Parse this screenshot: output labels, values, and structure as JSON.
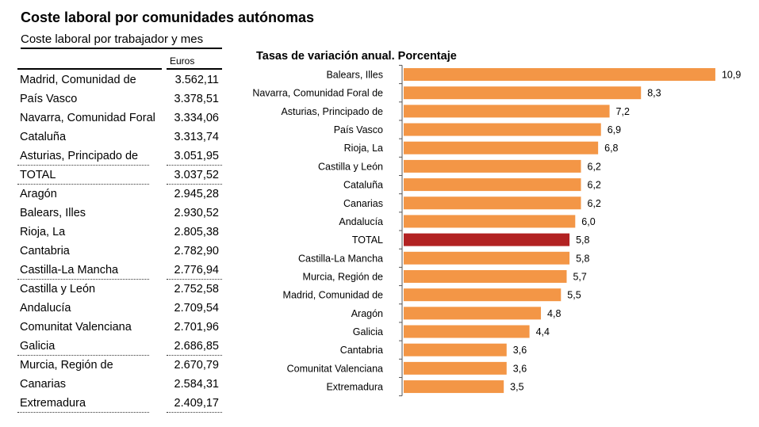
{
  "title": "Coste laboral por comunidades autónomas",
  "table": {
    "title": "Coste laboral por trabajador y mes",
    "unit": "Euros",
    "rows": [
      {
        "name": "Madrid, Comunidad de",
        "value": "3.562,11"
      },
      {
        "name": "País Vasco",
        "value": "3.378,51"
      },
      {
        "name": "Navarra, Comunidad Foral",
        "value": "3.334,06"
      },
      {
        "name": "Cataluña",
        "value": "3.313,74"
      },
      {
        "name": "Asturias, Principado de",
        "value": "3.051,95"
      },
      {
        "name": "TOTAL",
        "value": "3.037,52"
      },
      {
        "name": "Aragón",
        "value": "2.945,28"
      },
      {
        "name": "Balears, Illes",
        "value": "2.930,52"
      },
      {
        "name": "Rioja, La",
        "value": "2.805,38"
      },
      {
        "name": "Cantabria",
        "value": "2.782,90"
      },
      {
        "name": "Castilla-La Mancha",
        "value": "2.776,94"
      },
      {
        "name": "Castilla y León",
        "value": "2.752,58"
      },
      {
        "name": "Andalucía",
        "value": "2.709,54"
      },
      {
        "name": "Comunitat Valenciana",
        "value": "2.701,96"
      },
      {
        "name": "Galicia",
        "value": "2.686,85"
      },
      {
        "name": "Murcia, Región de",
        "value": "2.670,79"
      },
      {
        "name": "Canarias",
        "value": "2.584,31"
      },
      {
        "name": "Extremadura",
        "value": "2.409,17"
      }
    ]
  },
  "chart_data": {
    "type": "bar",
    "orientation": "horizontal",
    "title": "Tasas de variación anual. Porcentaje",
    "categories": [
      "Balears, Illes",
      "Navarra, Comunidad Foral de",
      "Asturias, Principado de",
      "País Vasco",
      "Rioja, La",
      "Castilla y León",
      "Cataluña",
      "Canarias",
      "Andalucía",
      "TOTAL",
      "Castilla-La Mancha",
      "Murcia, Región de",
      "Madrid, Comunidad de",
      "Aragón",
      "Galicia",
      "Cantabria",
      "Comunitat Valenciana",
      "Extremadura"
    ],
    "values": [
      10.9,
      8.3,
      7.2,
      6.9,
      6.8,
      6.2,
      6.2,
      6.2,
      6.0,
      5.8,
      5.8,
      5.7,
      5.5,
      4.8,
      4.4,
      3.6,
      3.6,
      3.5
    ],
    "labels": [
      "10,9",
      "8,3",
      "7,2",
      "6,9",
      "6,8",
      "6,2",
      "6,2",
      "6,2",
      "6,0",
      "5,8",
      "5,8",
      "5,7",
      "5,5",
      "4,8",
      "4,4",
      "3,6",
      "3,6",
      "3,5"
    ],
    "highlight": "TOTAL",
    "colors": {
      "bar": "#F39646",
      "highlight": "#B22222"
    },
    "grid": false,
    "legend": "none"
  }
}
